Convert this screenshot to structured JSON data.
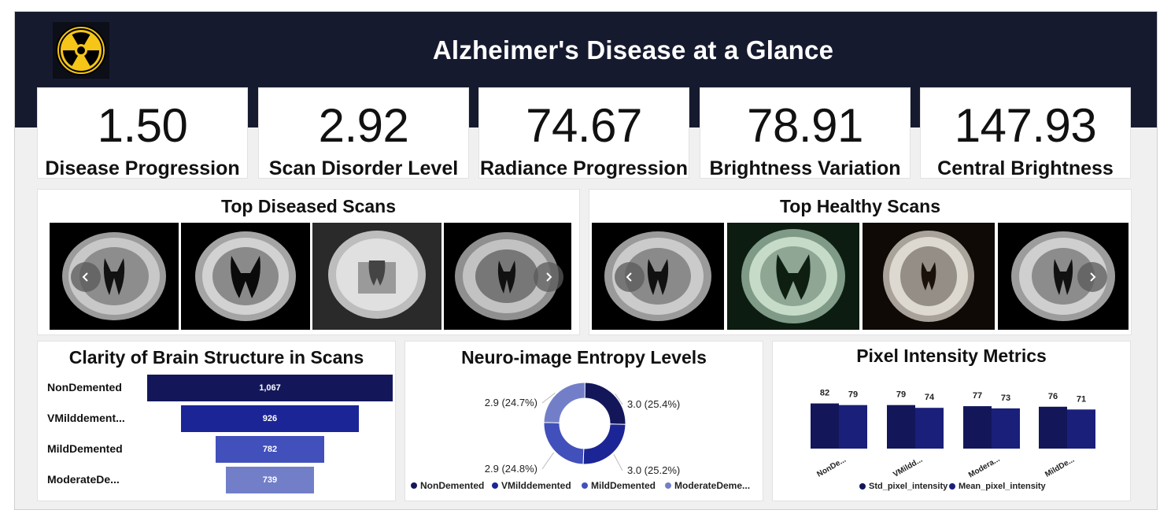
{
  "header": {
    "title": "Alzheimer's Disease at a Glance",
    "logo_icon": "radiation-icon",
    "logo_colors": {
      "fill": "#f5c518",
      "outline": "#000000",
      "background": "#0c0e18"
    }
  },
  "kpis": [
    {
      "value": "1.50",
      "label": "Disease Progression"
    },
    {
      "value": "2.92",
      "label": "Scan Disorder Level"
    },
    {
      "value": "74.67",
      "label": "Radiance Progression"
    },
    {
      "value": "78.91",
      "label": "Brightness Variation"
    },
    {
      "value": "147.93",
      "label": "Central Brightness"
    }
  ],
  "diseased_scans": {
    "title": "Top Diseased Scans",
    "prev_icon": "chevron-left-icon",
    "next_icon": "chevron-right-icon",
    "background_colors": [
      "#000000",
      "#000000",
      "#2a2a2a",
      "#000000"
    ]
  },
  "healthy_scans": {
    "title": "Top Healthy Scans",
    "prev_icon": "chevron-left-icon",
    "next_icon": "chevron-right-icon",
    "background_colors": [
      "#000000",
      "#0c1c10",
      "#0f0a06",
      "#000000"
    ]
  },
  "chart_data": [
    {
      "type": "bar",
      "subtype": "funnel",
      "title": "Clarity of Brain Structure in Scans",
      "categories": [
        "NonDemented",
        "VMilddement...",
        "MildDemented",
        "ModerateDe..."
      ],
      "values": [
        1067,
        926,
        782,
        739
      ],
      "value_labels": [
        "1,067",
        "926",
        "782",
        "739"
      ],
      "colors": [
        "#13175a",
        "#1c2596",
        "#4250bb",
        "#727fc8"
      ]
    },
    {
      "type": "pie",
      "subtype": "donut",
      "title": "Neuro-image Entropy Levels",
      "categories": [
        "NonDemented",
        "VMilddemented",
        "MildDemented",
        "ModerateDeme..."
      ],
      "values": [
        3.0,
        3.0,
        2.9,
        2.9
      ],
      "percentages": [
        25.4,
        25.2,
        24.8,
        24.7
      ],
      "slice_labels": [
        "3.0 (25.4%)",
        "3.0 (25.2%)",
        "2.9 (24.8%)",
        "2.9 (24.7%)"
      ],
      "colors": [
        "#13175a",
        "#1c2596",
        "#4250bb",
        "#727fc8"
      ],
      "legend_position": "bottom"
    },
    {
      "type": "bar",
      "title": "Pixel Intensity Metrics",
      "categories": [
        "NonDe...",
        "VMildd...",
        "Modera...",
        "MildDe..."
      ],
      "series": [
        {
          "name": "Std_pixel_intensity",
          "values": [
            82,
            79,
            77,
            76
          ],
          "color": "#13175a"
        },
        {
          "name": "Mean_pixel_intensity",
          "values": [
            79,
            74,
            73,
            71
          ],
          "color": "#1a1f7a"
        }
      ],
      "legend_position": "bottom"
    }
  ]
}
